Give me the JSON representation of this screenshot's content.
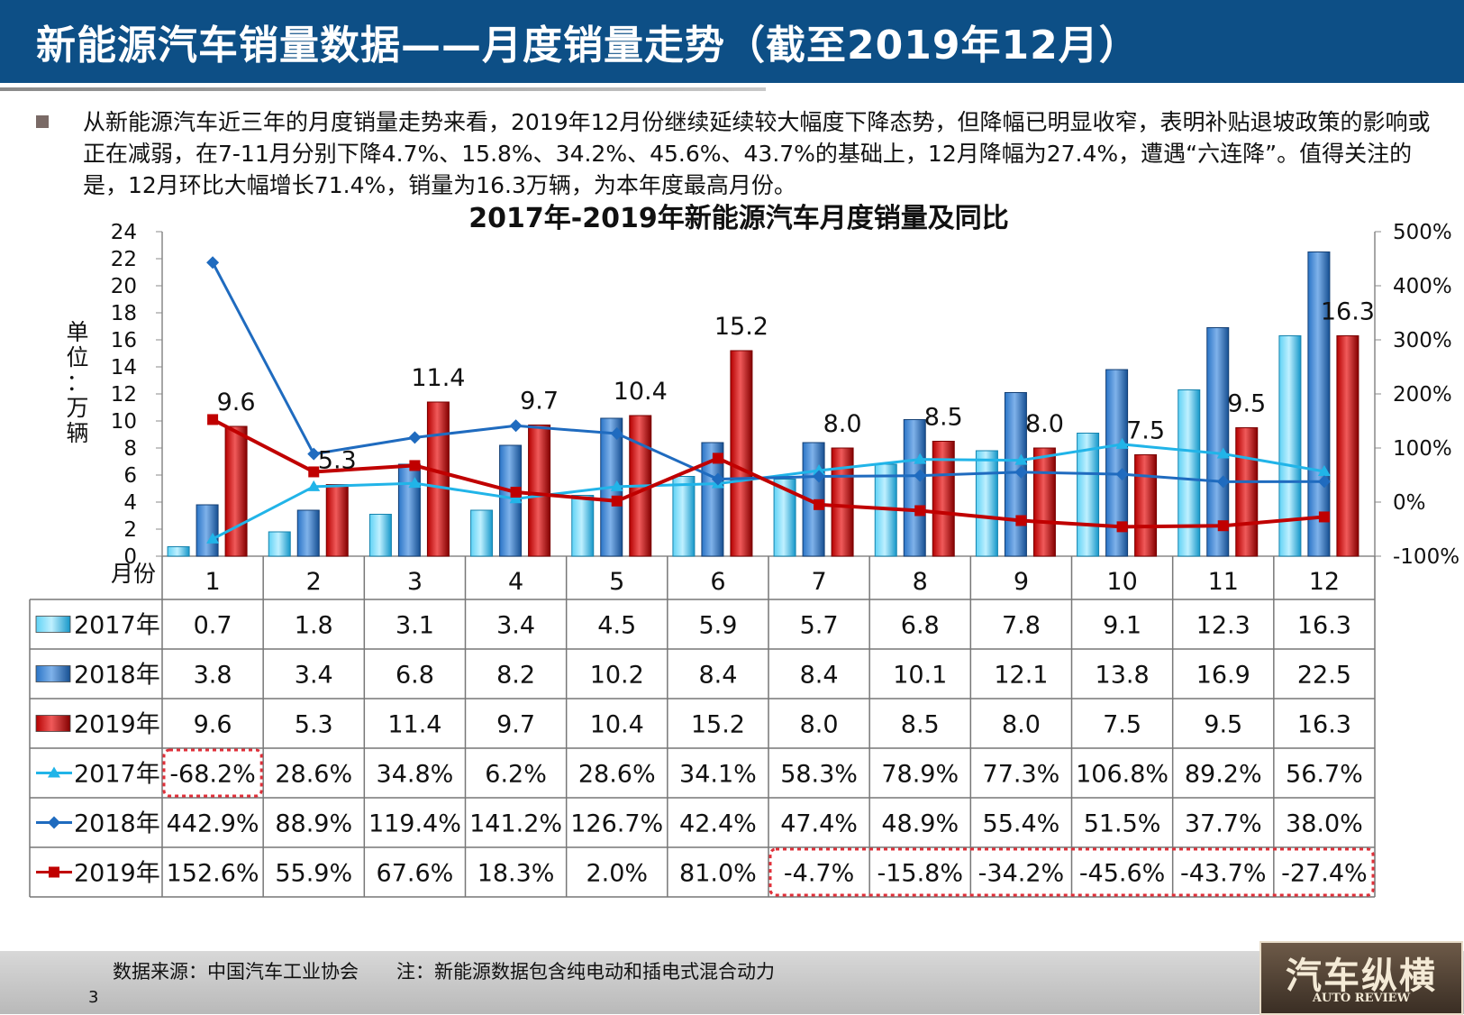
{
  "title": "新能源汽车销量数据——月度销量走势（截至2019年12月）",
  "summary": "从新能源汽车近三年的月度销量走势来看，2019年12月份继续延续较大幅度下降态势，但降幅已明显收窄，表明补贴退坡政策的影响或正在减弱，在7-11月分别下降4.7%、15.8%、34.2%、45.6%、43.7%的基础上，12月降幅为27.4%，遭遇“六连降”。值得关注的是，12月环比大幅增长71.4%，销量为16.3万辆，为本年度最高月份。",
  "footer": {
    "source": "数据来源：中国汽车工业协会　　注：新能源数据包含纯电动和插电式混合动力",
    "page_number": "3",
    "brand_cn": "汽车纵横",
    "brand_en": "AUTO REVIEW"
  },
  "colors": {
    "title_bg": "#0d4f86",
    "s2017": "#21b4e8",
    "s2018": "#1f6bbf",
    "s2019": "#c00000",
    "highlight_border": "#e0303a"
  },
  "chart_data": {
    "type": "bar",
    "title": "2017年-2019年新能源汽车月度销量及同比",
    "ylabel": "单位：万辆",
    "xlabel": "月份",
    "categories": [
      "1",
      "2",
      "3",
      "4",
      "5",
      "6",
      "7",
      "8",
      "9",
      "10",
      "11",
      "12"
    ],
    "y_ticks": [
      "0",
      "2",
      "4",
      "6",
      "8",
      "10",
      "12",
      "14",
      "16",
      "18",
      "20",
      "22",
      "24"
    ],
    "y_right_ticks": [
      "-100%",
      "0%",
      "100%",
      "200%",
      "300%",
      "400%",
      "500%"
    ],
    "ylim": [
      0,
      24
    ],
    "y_right_lim": [
      -100,
      500
    ],
    "bar_series": [
      {
        "name": "2017年",
        "values": [
          0.7,
          1.8,
          3.1,
          3.4,
          4.5,
          5.9,
          5.7,
          6.8,
          7.8,
          9.1,
          12.3,
          16.3
        ],
        "labels": [
          "0.7",
          "1.8",
          "3.1",
          "3.4",
          "4.5",
          "5.9",
          "5.7",
          "6.8",
          "7.8",
          "9.1",
          "12.3",
          "16.3"
        ]
      },
      {
        "name": "2018年",
        "values": [
          3.8,
          3.4,
          6.8,
          8.2,
          10.2,
          8.4,
          8.4,
          10.1,
          12.1,
          13.8,
          16.9,
          22.5
        ],
        "labels": [
          "3.8",
          "3.4",
          "6.8",
          "8.2",
          "10.2",
          "8.4",
          "8.4",
          "10.1",
          "12.1",
          "13.8",
          "16.9",
          "22.5"
        ]
      },
      {
        "name": "2019年",
        "values": [
          9.6,
          5.3,
          11.4,
          9.7,
          10.4,
          15.2,
          8.0,
          8.5,
          8.0,
          7.5,
          9.5,
          16.3
        ],
        "labels": [
          "9.6",
          "5.3",
          "11.4",
          "9.7",
          "10.4",
          "15.2",
          "8.0",
          "8.5",
          "8.0",
          "7.5",
          "9.5",
          "16.3"
        ]
      }
    ],
    "line_series": [
      {
        "name": "2017年",
        "values": [
          -68.2,
          28.6,
          34.8,
          6.2,
          28.6,
          34.1,
          58.3,
          78.9,
          77.3,
          106.8,
          89.2,
          56.7
        ],
        "labels": [
          "-68.2%",
          "28.6%",
          "34.8%",
          "6.2%",
          "28.6%",
          "34.1%",
          "58.3%",
          "78.9%",
          "77.3%",
          "106.8%",
          "89.2%",
          "56.7%"
        ]
      },
      {
        "name": "2018年",
        "values": [
          442.9,
          88.9,
          119.4,
          141.2,
          126.7,
          42.4,
          47.4,
          48.9,
          55.4,
          51.5,
          37.7,
          38.0
        ],
        "labels": [
          "442.9%",
          "88.9%",
          "119.4%",
          "141.2%",
          "126.7%",
          "42.4%",
          "47.4%",
          "48.9%",
          "55.4%",
          "51.5%",
          "37.7%",
          "38.0%"
        ]
      },
      {
        "name": "2019年",
        "values": [
          152.6,
          55.9,
          67.6,
          18.3,
          2.0,
          81.0,
          -4.7,
          -15.8,
          -34.2,
          -45.6,
          -43.7,
          -27.4
        ],
        "labels": [
          "152.6%",
          "55.9%",
          "67.6%",
          "18.3%",
          "2.0%",
          "81.0%",
          "-4.7%",
          "-15.8%",
          "-34.2%",
          "-45.6%",
          "-43.7%",
          "-27.4%"
        ]
      }
    ],
    "data_labels_shown": "2019年",
    "highlight_cells": "2017年同比1月；2019年同比7-12月"
  }
}
